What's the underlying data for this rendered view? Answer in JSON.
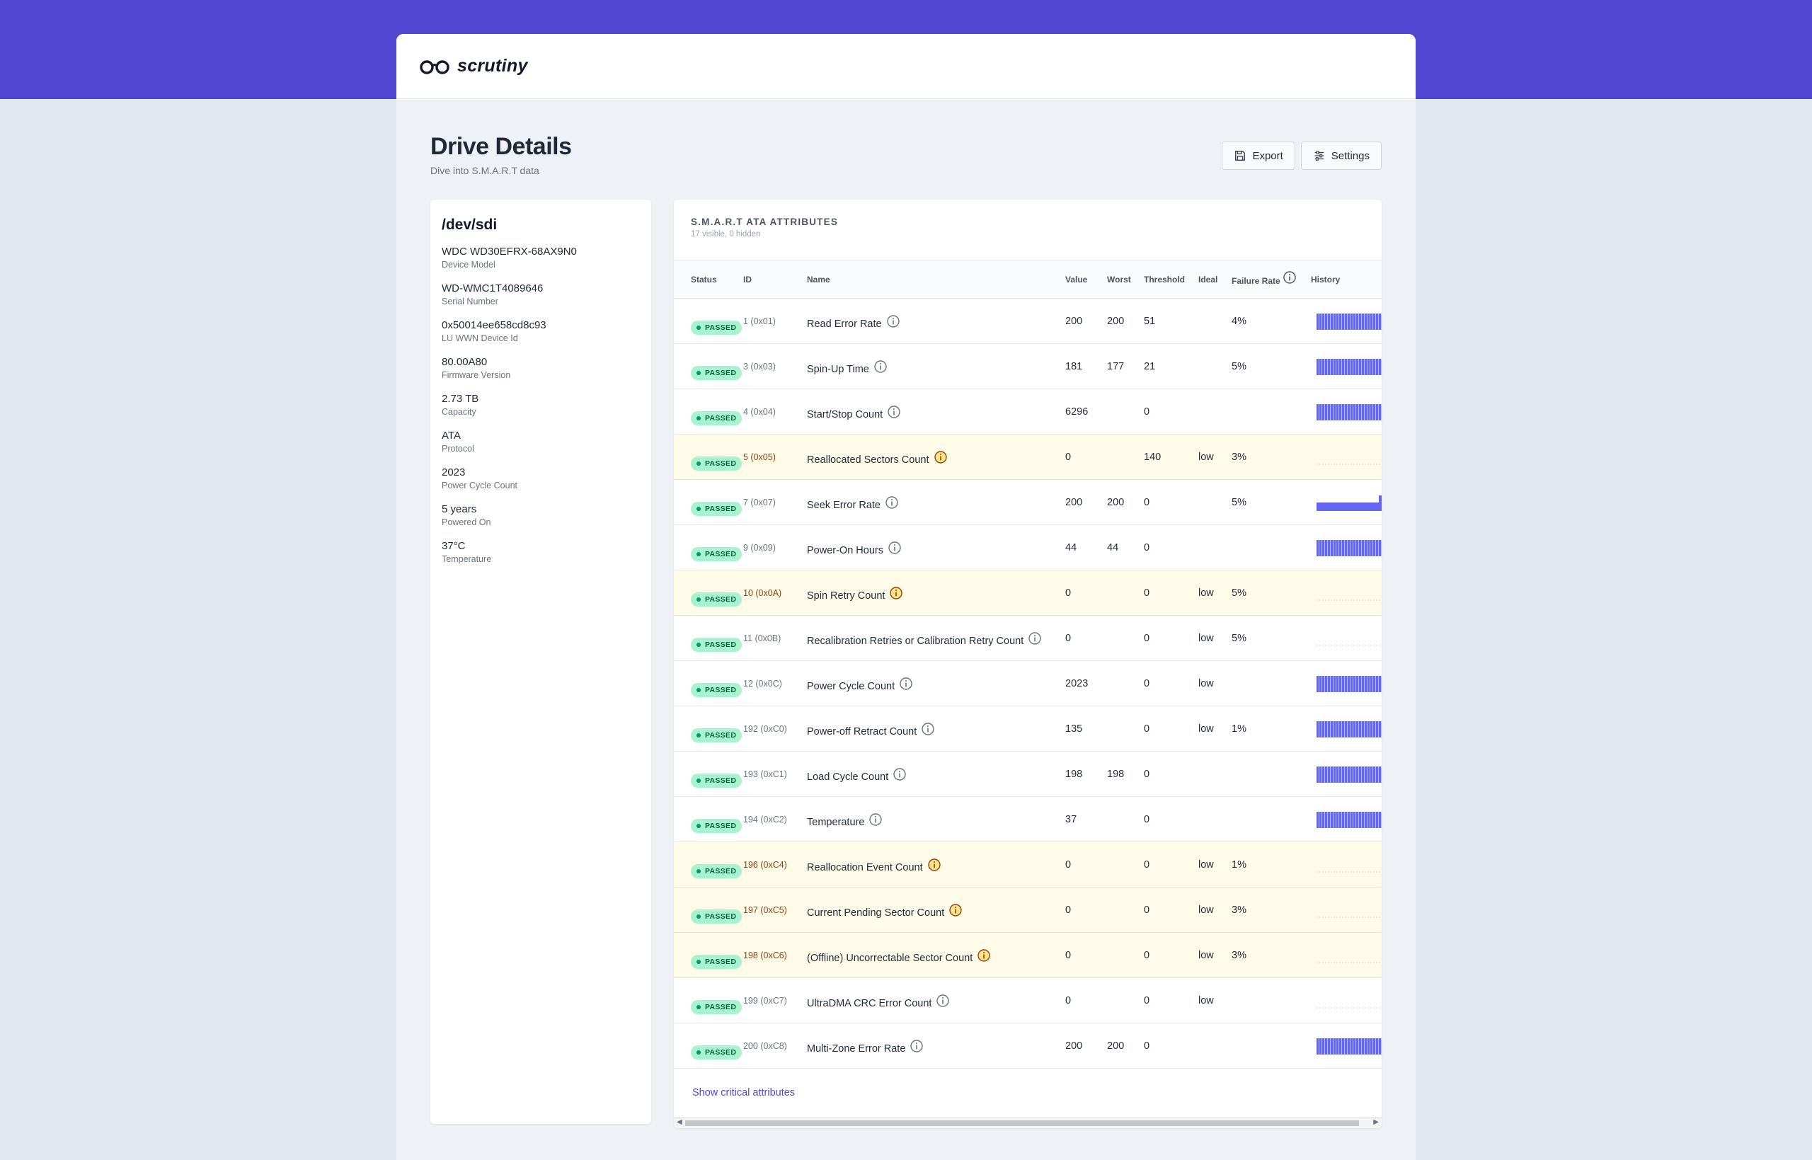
{
  "app": {
    "name": "scrutiny"
  },
  "page": {
    "title": "Drive Details",
    "subtitle": "Dive into S.M.A.R.T data"
  },
  "toolbar": {
    "export_label": "Export",
    "settings_label": "Settings"
  },
  "device": {
    "name": "/dev/sdi",
    "fields": [
      {
        "value": "WDC WD30EFRX-68AX9N0",
        "label": "Device Model"
      },
      {
        "value": "WD-WMC1T4089646",
        "label": "Serial Number"
      },
      {
        "value": "0x50014ee658cd8c93",
        "label": "LU WWN Device Id"
      },
      {
        "value": "80.00A80",
        "label": "Firmware Version"
      },
      {
        "value": "2.73 TB",
        "label": "Capacity"
      },
      {
        "value": "ATA",
        "label": "Protocol"
      },
      {
        "value": "2023",
        "label": "Power Cycle Count"
      },
      {
        "value": "5 years",
        "label": "Powered On"
      },
      {
        "value": "37°C",
        "label": "Temperature"
      }
    ]
  },
  "table": {
    "title": "S.M.A.R.T ATA Attributes",
    "subtitle": "17 visible, 0 hidden",
    "columns": {
      "status": "Status",
      "id": "ID",
      "name": "Name",
      "value": "Value",
      "worst": "Worst",
      "threshold": "Threshold",
      "ideal": "Ideal",
      "failure_rate": "Failure Rate",
      "history": "History"
    },
    "rows": [
      {
        "status": "PASSED",
        "id": "1 (0x01)",
        "name": "Read Error Rate",
        "value": "200",
        "worst": "200",
        "threshold": "51",
        "ideal": "",
        "failure_rate": "4%",
        "warn": false,
        "history": "full"
      },
      {
        "status": "PASSED",
        "id": "3 (0x03)",
        "name": "Spin-Up Time",
        "value": "181",
        "worst": "177",
        "threshold": "21",
        "ideal": "",
        "failure_rate": "5%",
        "warn": false,
        "history": "full"
      },
      {
        "status": "PASSED",
        "id": "4 (0x04)",
        "name": "Start/Stop Count",
        "value": "6296",
        "worst": "",
        "threshold": "0",
        "ideal": "",
        "failure_rate": "",
        "warn": false,
        "history": "full"
      },
      {
        "status": "PASSED",
        "id": "5 (0x05)",
        "name": "Reallocated Sectors Count",
        "value": "0",
        "worst": "",
        "threshold": "140",
        "ideal": "low",
        "failure_rate": "3%",
        "warn": true,
        "history": "flat"
      },
      {
        "status": "PASSED",
        "id": "7 (0x07)",
        "name": "Seek Error Rate",
        "value": "200",
        "worst": "200",
        "threshold": "0",
        "ideal": "",
        "failure_rate": "5%",
        "warn": false,
        "history": "low"
      },
      {
        "status": "PASSED",
        "id": "9 (0x09)",
        "name": "Power-On Hours",
        "value": "44",
        "worst": "44",
        "threshold": "0",
        "ideal": "",
        "failure_rate": "",
        "warn": false,
        "history": "full"
      },
      {
        "status": "PASSED",
        "id": "10 (0x0A)",
        "name": "Spin Retry Count",
        "value": "0",
        "worst": "",
        "threshold": "0",
        "ideal": "low",
        "failure_rate": "5%",
        "warn": true,
        "history": "flat"
      },
      {
        "status": "PASSED",
        "id": "11 (0x0B)",
        "name": "Recalibration Retries or Calibration Retry Count",
        "value": "0",
        "worst": "",
        "threshold": "0",
        "ideal": "low",
        "failure_rate": "5%",
        "warn": false,
        "history": "flat"
      },
      {
        "status": "PASSED",
        "id": "12 (0x0C)",
        "name": "Power Cycle Count",
        "value": "2023",
        "worst": "",
        "threshold": "0",
        "ideal": "low",
        "failure_rate": "",
        "warn": false,
        "history": "full"
      },
      {
        "status": "PASSED",
        "id": "192 (0xC0)",
        "name": "Power-off Retract Count",
        "value": "135",
        "worst": "",
        "threshold": "0",
        "ideal": "low",
        "failure_rate": "1%",
        "warn": false,
        "history": "full"
      },
      {
        "status": "PASSED",
        "id": "193 (0xC1)",
        "name": "Load Cycle Count",
        "value": "198",
        "worst": "198",
        "threshold": "0",
        "ideal": "",
        "failure_rate": "",
        "warn": false,
        "history": "full"
      },
      {
        "status": "PASSED",
        "id": "194 (0xC2)",
        "name": "Temperature",
        "value": "37",
        "worst": "",
        "threshold": "0",
        "ideal": "",
        "failure_rate": "",
        "warn": false,
        "history": "full"
      },
      {
        "status": "PASSED",
        "id": "196 (0xC4)",
        "name": "Reallocation Event Count",
        "value": "0",
        "worst": "",
        "threshold": "0",
        "ideal": "low",
        "failure_rate": "1%",
        "warn": true,
        "history": "flat"
      },
      {
        "status": "PASSED",
        "id": "197 (0xC5)",
        "name": "Current Pending Sector Count",
        "value": "0",
        "worst": "",
        "threshold": "0",
        "ideal": "low",
        "failure_rate": "3%",
        "warn": true,
        "history": "flat"
      },
      {
        "status": "PASSED",
        "id": "198 (0xC6)",
        "name": "(Offline) Uncorrectable Sector Count",
        "value": "0",
        "worst": "",
        "threshold": "0",
        "ideal": "low",
        "failure_rate": "3%",
        "warn": true,
        "history": "flat"
      },
      {
        "status": "PASSED",
        "id": "199 (0xC7)",
        "name": "UltraDMA CRC Error Count",
        "value": "0",
        "worst": "",
        "threshold": "0",
        "ideal": "low",
        "failure_rate": "",
        "warn": false,
        "history": "flat"
      },
      {
        "status": "PASSED",
        "id": "200 (0xC8)",
        "name": "Multi-Zone Error Rate",
        "value": "200",
        "worst": "200",
        "threshold": "0",
        "ideal": "",
        "failure_rate": "",
        "warn": false,
        "history": "full"
      }
    ],
    "show_critical_label": "Show critical attributes"
  },
  "colors": {
    "brand": "#5046cf",
    "passed_bg": "#a7f3d0",
    "warn_row": "#fefce8",
    "history_bar": "#6366f1"
  },
  "icons": [
    "glasses-logo-icon",
    "save-icon",
    "sliders-icon",
    "info-icon"
  ]
}
